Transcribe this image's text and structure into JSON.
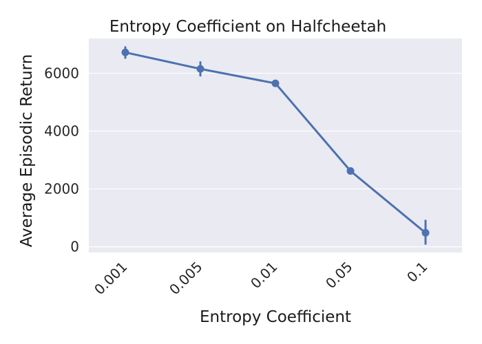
{
  "chart_data": {
    "type": "line",
    "title": "Entropy Coefficient on Halfcheetah",
    "xlabel": "Entropy Coefficient",
    "ylabel": "Average Episodic Return",
    "categories": [
      "0.001",
      "0.005",
      "0.01",
      "0.05",
      "0.1"
    ],
    "yticks": [
      "0",
      "2000",
      "4000",
      "6000"
    ],
    "ylim": [
      -200,
      7200
    ],
    "grid": true,
    "series": [
      {
        "values": [
          6720,
          6150,
          5650,
          2620,
          480
        ],
        "err_low": [
          6530,
          5920,
          5580,
          2570,
          100
        ],
        "err_high": [
          6900,
          6380,
          5720,
          2680,
          900
        ]
      }
    ],
    "colors": {
      "line": "#4c72b0",
      "plot_background": "#eaeaf2",
      "grid": "#ffffff"
    }
  }
}
